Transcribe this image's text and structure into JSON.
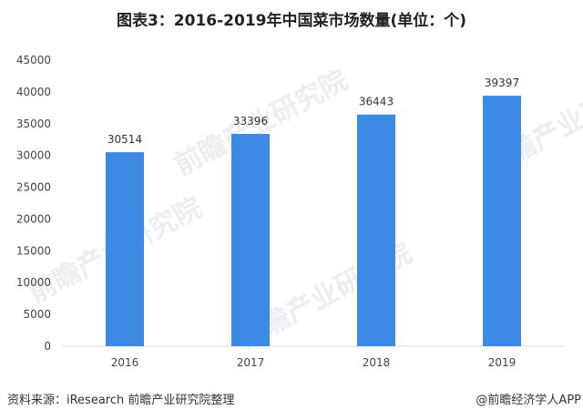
{
  "chart_data": {
    "type": "bar",
    "title": "图表3：2016-2019年中国菜市场数量(单位：个)",
    "categories": [
      "2016",
      "2017",
      "2018",
      "2019"
    ],
    "values": [
      30514,
      33396,
      36443,
      39397
    ],
    "ylim": [
      0,
      45000
    ],
    "yticks": [
      0,
      5000,
      10000,
      15000,
      20000,
      25000,
      30000,
      35000,
      40000,
      45000
    ],
    "xlabel": "",
    "ylabel": "",
    "grid": false,
    "bar_color": "#3d8ae5"
  },
  "footer": {
    "source": "资料来源：iResearch 前瞻产业研究院整理",
    "credit": "@前瞻经济学人APP"
  },
  "watermark": "前瞻产业研究院"
}
